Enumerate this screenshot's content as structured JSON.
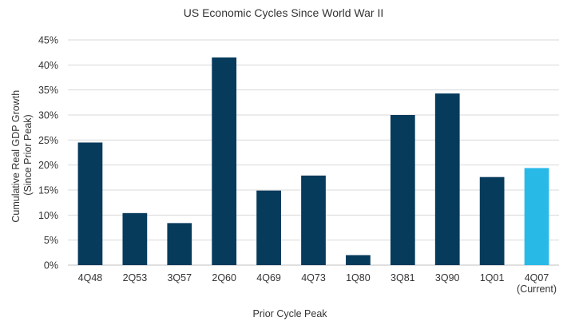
{
  "chart_data": {
    "type": "bar",
    "title": "US Economic Cycles Since World War II",
    "xlabel": "Prior Cycle Peak",
    "ylabel_lines": [
      "Cumulative Real GDP Growth",
      "(Since Prior Peak)"
    ],
    "categories": [
      {
        "lines": [
          "4Q48"
        ]
      },
      {
        "lines": [
          "2Q53"
        ]
      },
      {
        "lines": [
          "3Q57"
        ]
      },
      {
        "lines": [
          "2Q60"
        ]
      },
      {
        "lines": [
          "4Q69"
        ]
      },
      {
        "lines": [
          "4Q73"
        ]
      },
      {
        "lines": [
          "1Q80"
        ]
      },
      {
        "lines": [
          "3Q81"
        ]
      },
      {
        "lines": [
          "3Q90"
        ]
      },
      {
        "lines": [
          "1Q01"
        ]
      },
      {
        "lines": [
          "4Q07",
          "(Current)"
        ]
      }
    ],
    "values": [
      24.5,
      10.4,
      8.4,
      41.5,
      14.9,
      17.9,
      2.0,
      30.0,
      34.3,
      17.6,
      19.4
    ],
    "y_ticks": [
      {
        "value": 0,
        "label": "0%"
      },
      {
        "value": 5,
        "label": "5%"
      },
      {
        "value": 10,
        "label": "10%"
      },
      {
        "value": 15,
        "label": "15%"
      },
      {
        "value": 20,
        "label": "20%"
      },
      {
        "value": 25,
        "label": "25%"
      },
      {
        "value": 30,
        "label": "30%"
      },
      {
        "value": 35,
        "label": "35%"
      },
      {
        "value": 40,
        "label": "40%"
      },
      {
        "value": 45,
        "label": "45%"
      }
    ],
    "ylim": [
      0,
      45
    ],
    "grid": true,
    "legend": "none",
    "colors": {
      "bar": "#073b5c",
      "highlight": "#29b9e7",
      "highlight_index": 10
    }
  }
}
